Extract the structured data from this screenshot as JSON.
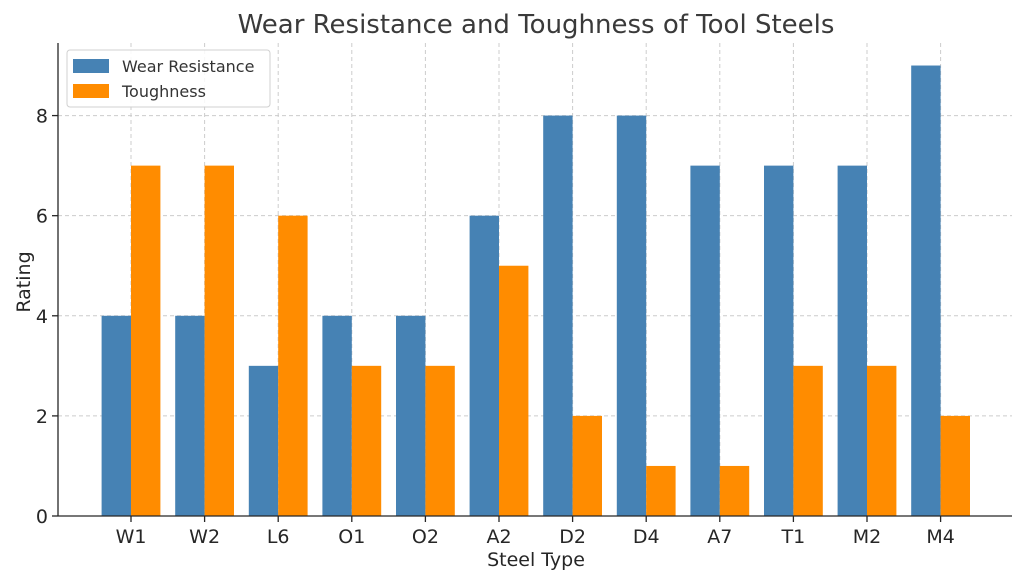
{
  "chart_data": {
    "type": "bar",
    "title": "Wear Resistance and Toughness of Tool Steels",
    "xlabel": "Steel Type",
    "ylabel": "Rating",
    "categories": [
      "W1",
      "W2",
      "L6",
      "O1",
      "O2",
      "A2",
      "D2",
      "D4",
      "A7",
      "T1",
      "M2",
      "M4"
    ],
    "series": [
      {
        "name": "Wear Resistance",
        "color": "#4682B4",
        "values": [
          4,
          4,
          3,
          4,
          4,
          6,
          8,
          8,
          7,
          7,
          7,
          9
        ]
      },
      {
        "name": "Toughness",
        "color": "#FF8C00",
        "values": [
          7,
          7,
          6,
          3,
          3,
          5,
          2,
          1,
          1,
          3,
          3,
          2
        ]
      }
    ],
    "ylim": [
      0,
      9.45
    ],
    "yticks": [
      0,
      2,
      4,
      6,
      8
    ],
    "grid": true,
    "legend_position": "top-left"
  }
}
